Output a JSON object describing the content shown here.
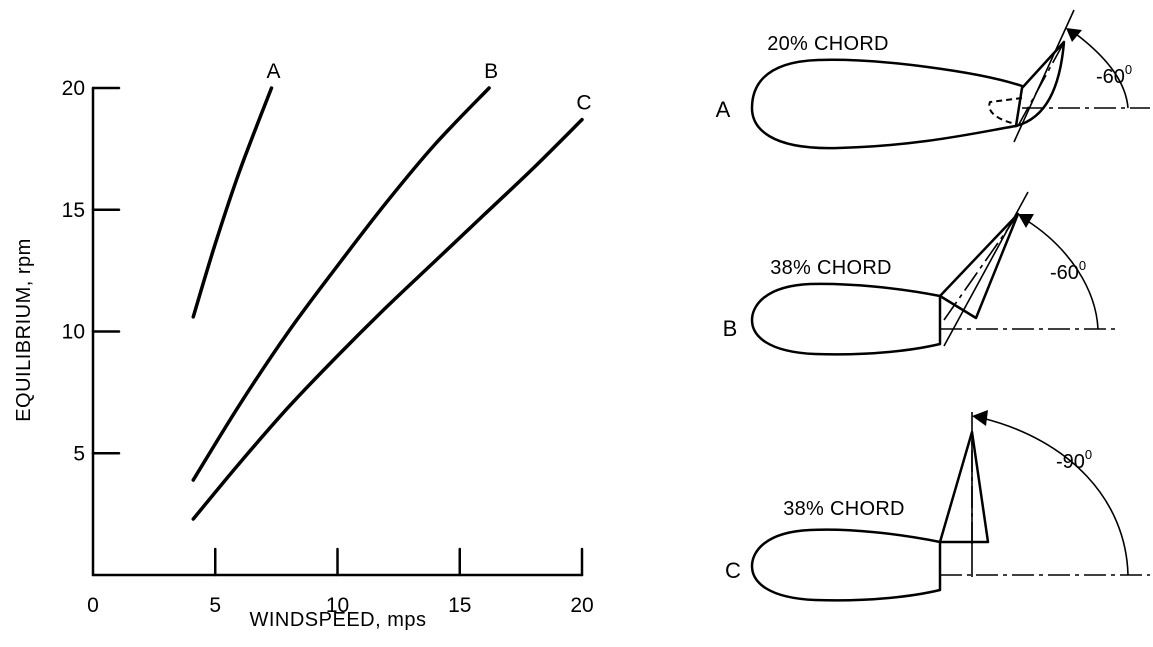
{
  "chart_data": {
    "type": "line",
    "xlabel": "WINDSPEED, mps",
    "ylabel": "EQUILIBRIUM, rpm",
    "xlim": [
      0,
      20
    ],
    "ylim": [
      0,
      20
    ],
    "x_ticks": [
      0,
      5,
      10,
      15,
      20
    ],
    "y_ticks": [
      5,
      10,
      15,
      20
    ],
    "grid": false,
    "series": [
      {
        "name": "A",
        "x": [
          4.1,
          5.0,
          6.0,
          7.3
        ],
        "y": [
          10.6,
          13.6,
          16.6,
          20.0
        ]
      },
      {
        "name": "B",
        "x": [
          4.1,
          6.0,
          8.0,
          10.0,
          12.0,
          14.0,
          16.2
        ],
        "y": [
          3.9,
          7.0,
          10.0,
          12.7,
          15.3,
          17.7,
          20.0
        ]
      },
      {
        "name": "C",
        "x": [
          4.1,
          6.0,
          8.0,
          10.0,
          12.0,
          14.0,
          16.0,
          18.0,
          20.0
        ],
        "y": [
          2.3,
          4.6,
          6.9,
          9.0,
          11.0,
          12.9,
          14.8,
          16.7,
          18.7
        ]
      }
    ]
  },
  "diagrams": [
    {
      "letter": "A",
      "chord": "20% CHORD",
      "angle": "-60",
      "degree": "0"
    },
    {
      "letter": "B",
      "chord": "38% CHORD",
      "angle": "-60",
      "degree": "0"
    },
    {
      "letter": "C",
      "chord": "38% CHORD",
      "angle": "-90",
      "degree": "0"
    }
  ]
}
